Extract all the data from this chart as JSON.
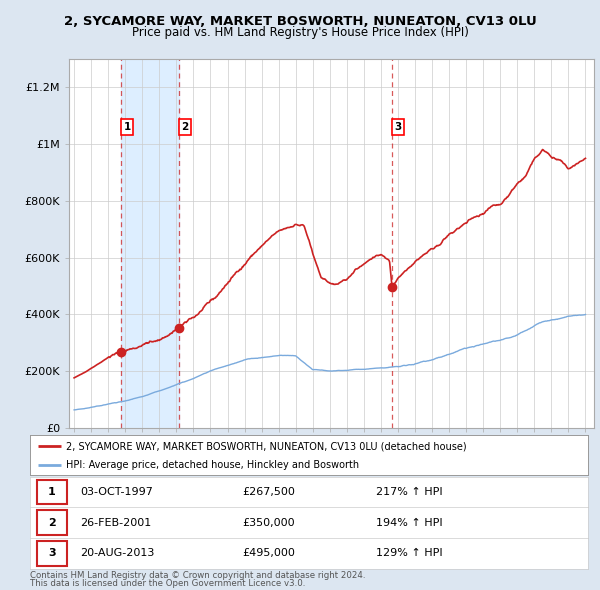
{
  "title": "2, SYCAMORE WAY, MARKET BOSWORTH, NUNEATON, CV13 0LU",
  "subtitle": "Price paid vs. HM Land Registry's House Price Index (HPI)",
  "legend_line1": "2, SYCAMORE WAY, MARKET BOSWORTH, NUNEATON, CV13 0LU (detached house)",
  "legend_line2": "HPI: Average price, detached house, Hinckley and Bosworth",
  "footer1": "Contains HM Land Registry data © Crown copyright and database right 2024.",
  "footer2": "This data is licensed under the Open Government Licence v3.0.",
  "sales": [
    {
      "label": "1",
      "date": "03-OCT-1997",
      "price": 267500,
      "pct": "217% ↑ HPI",
      "x_year": 1997.75
    },
    {
      "label": "2",
      "date": "26-FEB-2001",
      "price": 350000,
      "pct": "194% ↑ HPI",
      "x_year": 2001.15
    },
    {
      "label": "3",
      "date": "20-AUG-2013",
      "price": 495000,
      "pct": "129% ↑ HPI",
      "x_year": 2013.65
    }
  ],
  "table_rows": [
    [
      "1",
      "03-OCT-1997",
      "£267,500",
      "217% ↑ HPI"
    ],
    [
      "2",
      "26-FEB-2001",
      "£350,000",
      "194% ↑ HPI"
    ],
    [
      "3",
      "20-AUG-2013",
      "£495,000",
      "129% ↑ HPI"
    ]
  ],
  "red_line_color": "#cc2222",
  "blue_line_color": "#7aaadd",
  "shade_color": "#ddeeff",
  "background_color": "#dce6f1",
  "plot_bg_color": "#ffffff",
  "grid_color": "#cccccc",
  "ylim": [
    0,
    1300000
  ],
  "xlim_start": 1994.7,
  "xlim_end": 2025.5,
  "yticks": [
    0,
    200000,
    400000,
    600000,
    800000,
    1000000,
    1200000
  ],
  "ytick_labels": [
    "£0",
    "£200K",
    "£400K",
    "£600K",
    "£800K",
    "£1M",
    "£1.2M"
  ],
  "xticks": [
    1995,
    1996,
    1997,
    1998,
    1999,
    2000,
    2001,
    2002,
    2003,
    2004,
    2005,
    2006,
    2007,
    2008,
    2009,
    2010,
    2011,
    2012,
    2013,
    2014,
    2015,
    2016,
    2017,
    2018,
    2019,
    2020,
    2021,
    2022,
    2023,
    2024,
    2025
  ],
  "red_key_x": [
    1995.0,
    1996.0,
    1997.0,
    1997.75,
    1998.5,
    1999.5,
    2000.5,
    2001.15,
    2002.0,
    2003.0,
    2004.0,
    2005.0,
    2006.0,
    2007.0,
    2008.0,
    2008.5,
    2009.0,
    2009.5,
    2010.0,
    2010.5,
    2011.0,
    2011.5,
    2012.0,
    2012.5,
    2013.0,
    2013.5,
    2013.65,
    2014.0,
    2014.5,
    2015.0,
    2015.5,
    2016.0,
    2016.5,
    2017.0,
    2017.5,
    2018.0,
    2018.5,
    2019.0,
    2019.5,
    2020.0,
    2020.5,
    2021.0,
    2021.5,
    2022.0,
    2022.5,
    2023.0,
    2023.5,
    2024.0,
    2024.5,
    2025.0
  ],
  "red_key_y": [
    175000,
    210000,
    248000,
    267500,
    282000,
    300000,
    325000,
    350000,
    390000,
    440000,
    510000,
    580000,
    640000,
    690000,
    720000,
    710000,
    610000,
    530000,
    510000,
    505000,
    520000,
    560000,
    580000,
    600000,
    610000,
    590000,
    495000,
    530000,
    560000,
    590000,
    610000,
    630000,
    650000,
    680000,
    700000,
    720000,
    740000,
    760000,
    780000,
    790000,
    820000,
    860000,
    890000,
    950000,
    980000,
    960000,
    940000,
    910000,
    930000,
    950000
  ],
  "blue_key_x": [
    1995.0,
    1996.0,
    1997.0,
    1998.0,
    1999.0,
    2000.0,
    2001.0,
    2002.0,
    2003.0,
    2004.0,
    2005.0,
    2006.0,
    2007.0,
    2008.0,
    2009.0,
    2010.0,
    2011.0,
    2012.0,
    2013.0,
    2014.0,
    2015.0,
    2016.0,
    2017.0,
    2018.0,
    2019.0,
    2020.0,
    2021.0,
    2022.0,
    2023.0,
    2024.0,
    2025.0
  ],
  "blue_key_y": [
    62000,
    72000,
    83000,
    95000,
    108000,
    130000,
    152000,
    175000,
    200000,
    220000,
    238000,
    248000,
    255000,
    253000,
    205000,
    200000,
    203000,
    207000,
    210000,
    215000,
    225000,
    240000,
    260000,
    278000,
    295000,
    308000,
    328000,
    360000,
    380000,
    390000,
    400000
  ]
}
